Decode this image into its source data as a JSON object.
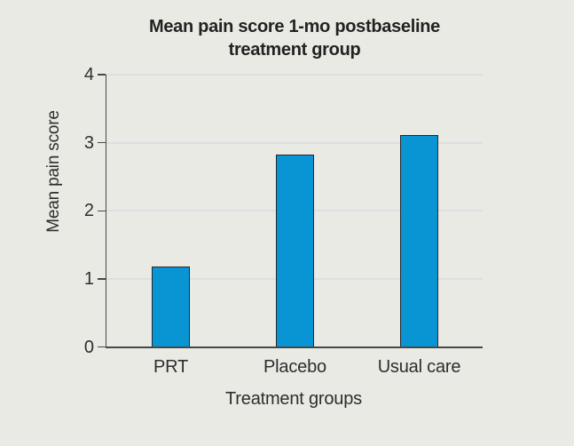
{
  "chart_data": {
    "type": "bar",
    "title": "Mean pain score 1-mo postbaseline treatment group",
    "title_line1": "Mean pain score 1-mo postbaseline",
    "title_line2": "treatment group",
    "categories": [
      "PRT",
      "Placebo",
      "Usual care"
    ],
    "values": [
      1.18,
      2.83,
      3.11
    ],
    "xlabel": "Treatment groups",
    "ylabel": "Mean pain score",
    "ylim": [
      0,
      4
    ],
    "yticks": [
      0,
      1,
      2,
      3,
      4
    ],
    "grid": true,
    "legend": "none",
    "colors": {
      "background": "#eaeae5",
      "bar_fill": "#0995d3",
      "bar_border": "#26262e",
      "gridline": "#dedee2",
      "axis": "#474747",
      "text": "#2d2d2d",
      "title_text": "#222222"
    }
  }
}
